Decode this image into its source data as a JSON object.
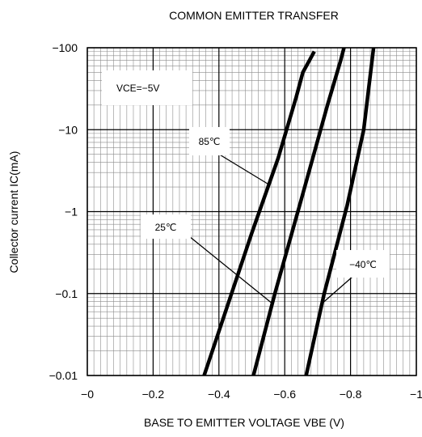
{
  "chart_data": {
    "type": "line",
    "title": "COMMON EMITTER TRANSFER",
    "xlabel": "BASE TO EMITTER VOLTAGE  VBE  (V)",
    "ylabel": "Collector current  IC(mA)",
    "x_range": [
      0,
      -1.0
    ],
    "y_range": [
      -0.01,
      -100
    ],
    "y_scale": "log",
    "x_ticks": [
      {
        "value": 0,
        "label": "−0"
      },
      {
        "value": -0.2,
        "label": "−0.2"
      },
      {
        "value": -0.4,
        "label": "−0.4"
      },
      {
        "value": -0.6,
        "label": "−0.6"
      },
      {
        "value": -0.8,
        "label": "−0.8"
      },
      {
        "value": -1.0,
        "label": "−1"
      }
    ],
    "y_ticks": [
      {
        "value": -100,
        "label": "−100"
      },
      {
        "value": -10,
        "label": "−10"
      },
      {
        "value": -1,
        "label": "−1"
      },
      {
        "value": -0.1,
        "label": "−0.1"
      },
      {
        "value": -0.01,
        "label": "−0.01"
      }
    ],
    "grid": true,
    "condition_label": "VCE=−5V",
    "series": [
      {
        "name": "85°C",
        "points": [
          [
            -0.355,
            -0.01
          ],
          [
            -0.42,
            -0.06
          ],
          [
            -0.5,
            -0.55
          ],
          [
            -0.58,
            -4.5
          ],
          [
            -0.635,
            -25
          ],
          [
            -0.655,
            -50
          ],
          [
            -0.69,
            -90
          ]
        ]
      },
      {
        "name": "25°C",
        "points": [
          [
            -0.505,
            -0.01
          ],
          [
            -0.57,
            -0.1
          ],
          [
            -0.65,
            -1.4
          ],
          [
            -0.73,
            -20
          ],
          [
            -0.77,
            -70
          ],
          [
            -0.78,
            -100
          ]
        ]
      },
      {
        "name": "−40°C",
        "points": [
          [
            -0.665,
            -0.01
          ],
          [
            -0.72,
            -0.1
          ],
          [
            -0.79,
            -1.2
          ],
          [
            -0.84,
            -10
          ],
          [
            -0.87,
            -100
          ]
        ]
      }
    ],
    "annotations": [
      {
        "text": "85℃",
        "series": "85°C"
      },
      {
        "text": "25℃",
        "series": "25°C"
      },
      {
        "text": "−40℃",
        "series": "−40°C"
      }
    ]
  }
}
